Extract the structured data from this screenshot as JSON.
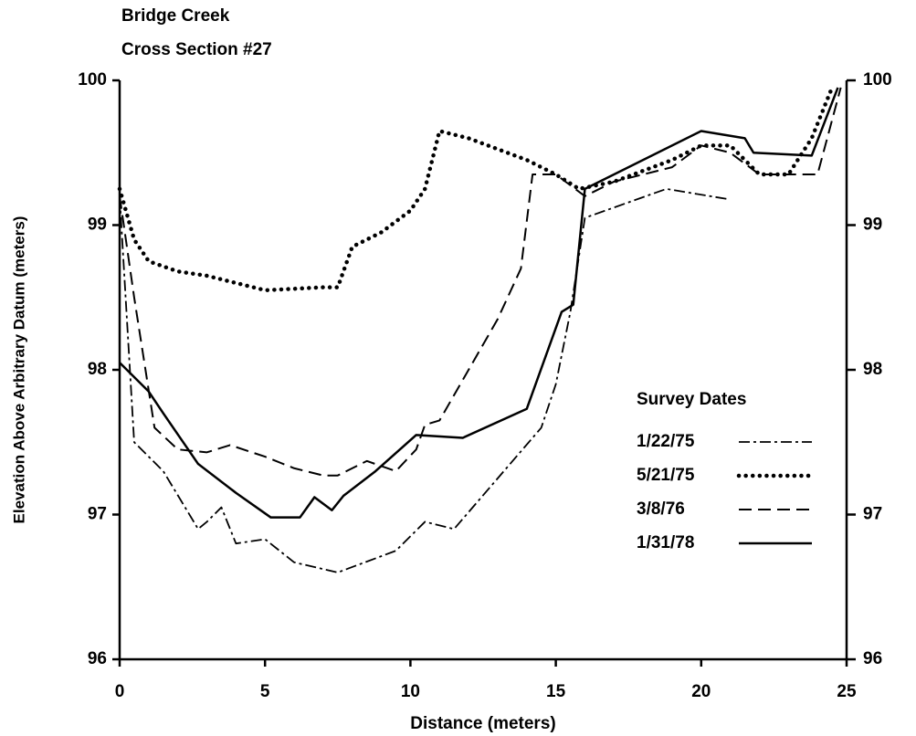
{
  "chart_data": {
    "type": "line",
    "title": "Bridge Creek",
    "subtitle": "Cross Section #27",
    "xlabel": "Distance (meters)",
    "ylabel": "Elevation Above Arbitrary Datum (meters)",
    "xlim": [
      0,
      25
    ],
    "xticks": [
      0,
      5,
      10,
      15,
      20,
      25
    ],
    "ylim": [
      96,
      100
    ],
    "yticks": [
      96,
      97,
      98,
      99,
      100
    ],
    "y2lim": [
      96,
      100
    ],
    "y2ticks": [
      96,
      97,
      98,
      99,
      100
    ],
    "legend_title": "Survey Dates",
    "legend": "right",
    "series": [
      {
        "name": "1/22/75",
        "color": "#000000",
        "style": "dashdot",
        "x": [
          0,
          0.5,
          1.5,
          2.7,
          3.0,
          3.5,
          4.0,
          5.0,
          6.0,
          7.5,
          9.5,
          10.5,
          11.5,
          14.5,
          15.0,
          15.5,
          16.0,
          18.8,
          20.9
        ],
        "values": [
          99.2,
          97.5,
          97.3,
          96.9,
          96.95,
          97.05,
          96.8,
          96.83,
          96.67,
          96.6,
          96.75,
          96.95,
          96.9,
          97.6,
          97.9,
          98.4,
          99.05,
          99.25,
          99.18
        ]
      },
      {
        "name": "5/21/75",
        "color": "#000000",
        "style": "dotted",
        "x": [
          0,
          0.5,
          1,
          2,
          3,
          4,
          5,
          6,
          7,
          7.5,
          8,
          9,
          10,
          10.5,
          11,
          12,
          14,
          15,
          15.8,
          17,
          19,
          20,
          21,
          22,
          23,
          23.8,
          24.5
        ],
        "values": [
          99.25,
          98.9,
          98.75,
          98.68,
          98.65,
          98.6,
          98.55,
          98.56,
          98.57,
          98.57,
          98.85,
          98.95,
          99.1,
          99.25,
          99.65,
          99.6,
          99.45,
          99.35,
          99.25,
          99.3,
          99.45,
          99.55,
          99.55,
          99.35,
          99.35,
          99.6,
          99.95
        ]
      },
      {
        "name": "3/8/76",
        "color": "#000000",
        "style": "dashed",
        "x": [
          0,
          0.5,
          1.2,
          2,
          3,
          3.8,
          5,
          6,
          7,
          7.5,
          8.5,
          9.5,
          10.2,
          10.5,
          11,
          13,
          13.8,
          14.2,
          15,
          16,
          17,
          19,
          20,
          21,
          22,
          24,
          24.8
        ],
        "values": [
          99.2,
          98.5,
          97.6,
          97.45,
          97.43,
          97.48,
          97.4,
          97.32,
          97.27,
          97.27,
          97.37,
          97.3,
          97.45,
          97.62,
          97.65,
          98.35,
          98.7,
          99.35,
          99.35,
          99.2,
          99.3,
          99.4,
          99.55,
          99.5,
          99.35,
          99.35,
          99.95
        ]
      },
      {
        "name": "1/31/78",
        "color": "#000000",
        "style": "solid",
        "x": [
          0,
          1,
          1.5,
          2.7,
          4,
          5.2,
          6.2,
          6.7,
          7.3,
          7.7,
          8.8,
          10.2,
          11.8,
          14,
          15.2,
          15.6,
          16,
          20,
          21.5,
          21.8,
          23.8,
          24.7
        ],
        "values": [
          98.05,
          97.85,
          97.7,
          97.35,
          97.15,
          96.98,
          96.98,
          97.12,
          97.03,
          97.13,
          97.3,
          97.55,
          97.53,
          97.73,
          98.4,
          98.45,
          99.25,
          99.65,
          99.6,
          99.5,
          99.48,
          99.95
        ]
      }
    ]
  }
}
